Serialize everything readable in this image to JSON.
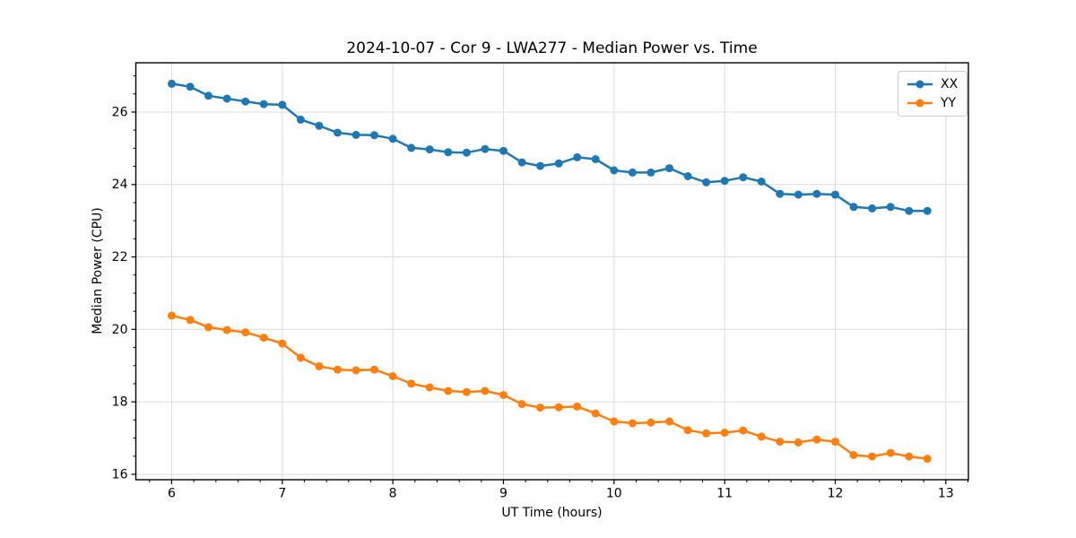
{
  "chart_data": {
    "type": "line",
    "title": "2024-10-07 - Cor 9 - LWA277 - Median Power vs. Time",
    "xlabel": "UT Time (hours)",
    "ylabel": "Median Power (CPU)",
    "xlim": [
      5.676,
      13.204
    ],
    "ylim": [
      15.85,
      27.36
    ],
    "xticks": [
      6,
      7,
      8,
      9,
      10,
      11,
      12,
      13
    ],
    "yticks": [
      16,
      18,
      20,
      22,
      24,
      26
    ],
    "x_minor_step": 0.2,
    "y_minor_step": 0.5,
    "grid": true,
    "grid_color": "#dcdcdc",
    "legend_position": "upper right",
    "x": [
      6.0,
      6.167,
      6.333,
      6.5,
      6.667,
      6.833,
      7.0,
      7.167,
      7.333,
      7.5,
      7.667,
      7.833,
      8.0,
      8.167,
      8.333,
      8.5,
      8.667,
      8.833,
      9.0,
      9.167,
      9.333,
      9.5,
      9.667,
      9.833,
      10.0,
      10.167,
      10.333,
      10.5,
      10.667,
      10.833,
      11.0,
      11.167,
      11.333,
      11.5,
      11.667,
      11.833,
      12.0,
      12.167,
      12.333,
      12.5,
      12.667,
      12.833
    ],
    "series": [
      {
        "name": "XX",
        "color": "#1f77b4",
        "values": [
          26.78,
          26.7,
          26.45,
          26.37,
          26.29,
          26.22,
          26.2,
          25.79,
          25.62,
          25.43,
          25.37,
          25.36,
          25.26,
          25.01,
          24.97,
          24.89,
          24.88,
          24.98,
          24.93,
          24.61,
          24.51,
          24.58,
          24.75,
          24.7,
          24.39,
          24.33,
          24.33,
          24.45,
          24.23,
          24.06,
          24.1,
          24.2,
          24.08,
          23.74,
          23.72,
          23.74,
          23.72,
          23.38,
          23.34,
          23.38,
          23.27,
          23.27
        ]
      },
      {
        "name": "YY",
        "color": "#ff7f0e",
        "values": [
          20.38,
          20.26,
          20.06,
          19.98,
          19.92,
          19.77,
          19.61,
          19.22,
          18.98,
          18.89,
          18.87,
          18.89,
          18.71,
          18.5,
          18.4,
          18.3,
          18.27,
          18.3,
          18.19,
          17.94,
          17.84,
          17.85,
          17.87,
          17.68,
          17.46,
          17.41,
          17.43,
          17.46,
          17.22,
          17.13,
          17.15,
          17.21,
          17.04,
          16.9,
          16.88,
          16.96,
          16.9,
          16.53,
          16.49,
          16.59,
          16.49,
          16.43
        ]
      }
    ]
  }
}
